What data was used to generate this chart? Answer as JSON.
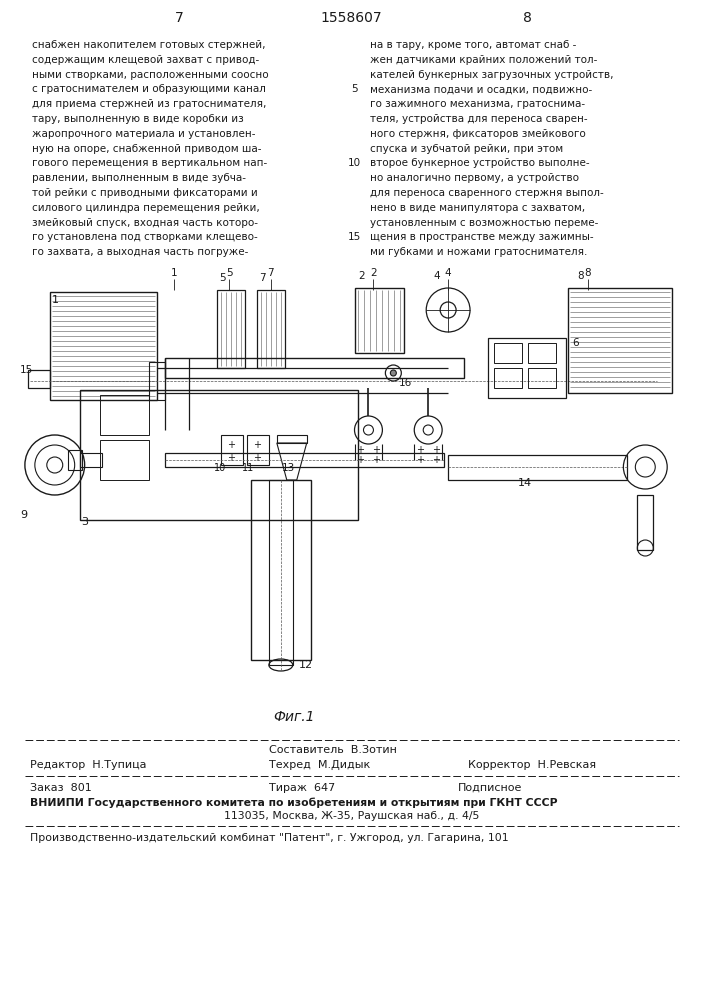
{
  "page_number_left": "7",
  "page_number_center": "1558607",
  "page_number_right": "8",
  "bg_color": "#ffffff",
  "text_color": "#1a1a1a",
  "left_column_text": [
    "снабжен накопителем готовых стержней,",
    "содержащим клещевой захват с привод-",
    "ными створками, расположенными соосно",
    "с гратоснимателем и образующими канал",
    "для приема стержней из гратоснимателя,",
    "тару, выполненную в виде коробки из",
    "жаропрочного материала и установлен-",
    "ную на опоре, снабженной приводом ша-",
    "гового перемещения в вертикальном нап-",
    "равлении, выполненным в виде зубча-",
    "той рейки с приводными фиксаторами и",
    "силового цилиндра перемещения рейки,",
    "змейковый спуск, входная часть которо-",
    "го установлена под створками клещево-",
    "го захвата, а выходная часть погруже-"
  ],
  "right_column_text": [
    "на в тару, кроме того, автомат снаб -",
    "жен датчиками крайних положений тол-",
    "кателей бункерных загрузочных устройств,",
    "механизма подачи и осадки, подвижно-",
    "го зажимного механизма, гратоснима-",
    "теля, устройства для переноса сварен-",
    "ного стержня, фиксаторов змейкового",
    "спуска и зубчатой рейки, при этом",
    "второе бункерное устройство выполне-",
    "но аналогично первому, а устройство",
    "для переноса сваренного стержня выпол-",
    "нено в виде манипулятора с захватом,",
    "установленным с возможностью переме-",
    "щения в пространстве между зажимны-",
    "ми губками и ножами гратоснимателя."
  ],
  "fig_caption": "Фиг.1",
  "editor_label": "Редактор",
  "editor_name": "Н.Тупица",
  "composer_label": "Составитель",
  "composer_name": "В.Зотин",
  "techred_label": "Техред",
  "techred_name": "М.Дидык",
  "corrector_label": "Корректор",
  "corrector_name": "Н.Ревская",
  "order_line": "Заказ  801",
  "tirazh_line": "Тираж  647",
  "podpisnoe_line": "Подписное",
  "vniip_line": "ВНИИПИ Государственного комитета по изобретениям и открытиям при ГКНТ СССР",
  "address_line": "113035, Москва, Ж-35, Раушская наб., д. 4/5",
  "production_line": "Производственно-издательский комбинат \"Патент\", г. Ужгород, ул. Гагарина, 101"
}
